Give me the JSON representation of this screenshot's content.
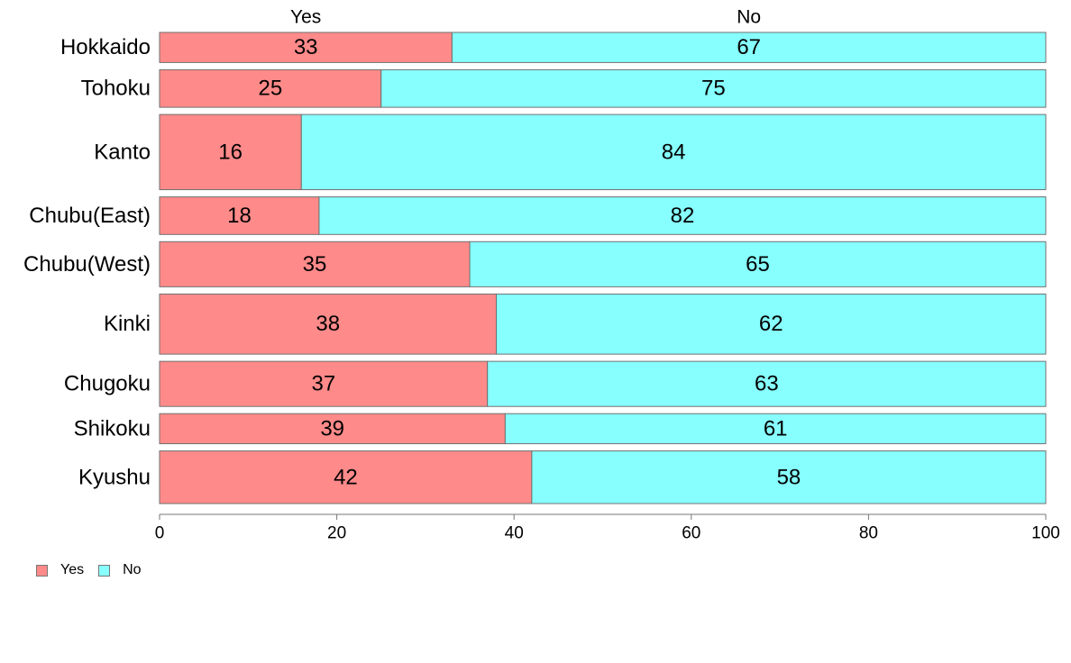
{
  "chart_data": {
    "type": "bar",
    "orientation": "horizontal",
    "stacked": true,
    "categories": [
      "Hokkaido",
      "Tohoku",
      "Kanto",
      "Chubu(East)",
      "Chubu(West)",
      "Kinki",
      "Chugoku",
      "Shikoku",
      "Kyushu"
    ],
    "series": [
      {
        "name": "Yes",
        "color": "#FF8A8A",
        "values": [
          33,
          25,
          16,
          18,
          35,
          38,
          37,
          39,
          42
        ]
      },
      {
        "name": "No",
        "color": "#87FFFF",
        "values": [
          67,
          75,
          84,
          82,
          65,
          62,
          63,
          61,
          58
        ]
      }
    ],
    "bar_widths": [
      4,
      5,
      10,
      5,
      6,
      8,
      6,
      4,
      7
    ],
    "xlim": [
      0,
      100
    ],
    "xticks": [
      0,
      20,
      40,
      60,
      80,
      100
    ],
    "column_headers": [
      "Yes",
      "No"
    ],
    "legend": {
      "position": "bottom-left",
      "items": [
        "Yes",
        "No"
      ]
    },
    "grid": false
  }
}
